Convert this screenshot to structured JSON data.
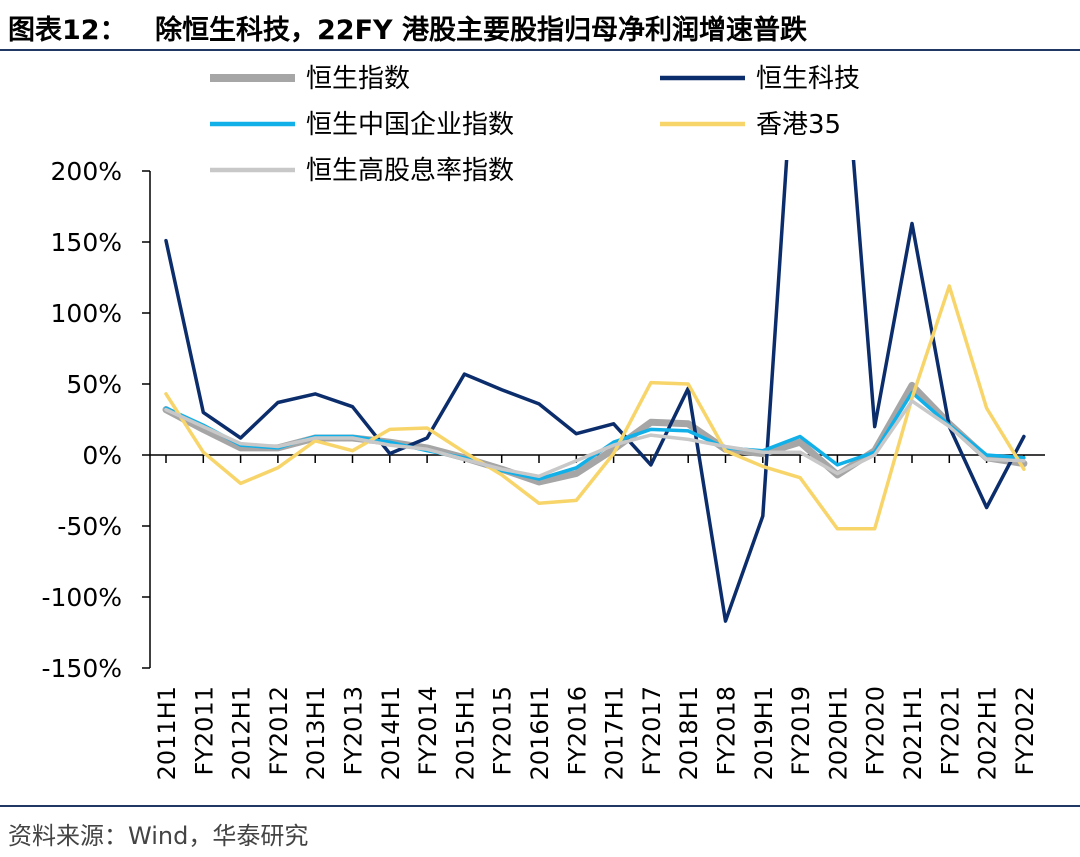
{
  "header": {
    "label": "图表12：",
    "title": "除恒生科技，22FY 港股主要股指归母净利润增速普跌"
  },
  "footer": {
    "source": "资料来源：Wind，华泰研究"
  },
  "chart_data": {
    "type": "line",
    "categories": [
      "2011H1",
      "FY2011",
      "2012H1",
      "FY2012",
      "2013H1",
      "FY2013",
      "2014H1",
      "FY2014",
      "2015H1",
      "FY2015",
      "2016H1",
      "FY2016",
      "2017H1",
      "FY2017",
      "2018H1",
      "FY2018",
      "2019H1",
      "FY2019",
      "2020H1",
      "FY2020",
      "2021H1",
      "FY2021",
      "2022H1",
      "FY2022"
    ],
    "yticks": [
      "200%",
      "150%",
      "100%",
      "50%",
      "0%",
      "-50%",
      "-100%",
      "-150%"
    ],
    "ylim": [
      -150,
      200
    ],
    "y_unit": "%",
    "legend_position": "top",
    "grid": false,
    "series": [
      {
        "name": "恒生指数",
        "color": "#a6a6a6",
        "width": 7,
        "values": [
          32,
          18,
          5,
          5,
          12,
          12,
          9,
          5,
          -2,
          -10,
          -19,
          -13,
          4,
          23,
          22,
          4,
          1,
          9,
          -14,
          3,
          49,
          22,
          -2,
          -6
        ]
      },
      {
        "name": "恒生科技",
        "color": "#0b2d6b",
        "width": 3.5,
        "values": [
          151,
          30,
          12,
          37,
          43,
          34,
          1,
          12,
          57,
          46,
          36,
          15,
          22,
          -7,
          47,
          -117,
          -43,
          350,
          350,
          20,
          163,
          20,
          -37,
          13
        ]
      },
      {
        "name": "恒生中国企业指数",
        "color": "#11b0e8",
        "width": 3.5,
        "values": [
          33,
          21,
          7,
          5,
          13,
          13,
          9,
          3,
          -2,
          -11,
          -17,
          -9,
          9,
          18,
          17,
          5,
          3,
          13,
          -7,
          2,
          44,
          21,
          0,
          -2
        ]
      },
      {
        "name": "香港35",
        "color": "#f8d56a",
        "width": 3.5,
        "values": [
          43,
          2,
          -20,
          -9,
          10,
          3,
          18,
          19,
          2,
          -14,
          -34,
          -32,
          1,
          51,
          50,
          3,
          -8,
          -16,
          -52,
          -52,
          40,
          119,
          33,
          -10
        ]
      },
      {
        "name": "恒生高股息率指数",
        "color": "#c8c8c8",
        "width": 3.5,
        "values": [
          32,
          20,
          8,
          6,
          12,
          12,
          7,
          4,
          -3,
          -10,
          -15,
          -4,
          7,
          14,
          11,
          6,
          2,
          2,
          -13,
          0,
          38,
          20,
          -3,
          -4
        ]
      }
    ]
  }
}
